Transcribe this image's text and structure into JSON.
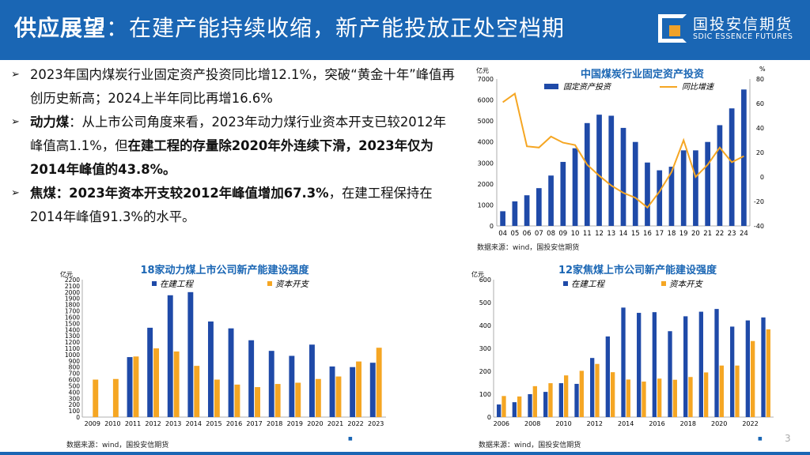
{
  "header": {
    "title_bold": "供应展望",
    "title_rest": "：在建产能持续收缩，新产能投放正处空档期",
    "logo_cn": "国投安信期货",
    "logo_en": "SDIC ESSENCE FUTURES"
  },
  "bullets": {
    "b1": "2023年国内煤炭行业固定资产投资同比增12.1%，突破“黄金十年”峰值再创历史新高；2024上半年同比再增16.6%",
    "b2_bold": "动力煤",
    "b2_a": "：从上市公司角度来看，2023年动力煤行业资本开支已较2012年峰值高1.1%，但",
    "b2_b": "在建工程的存量除2020年外连续下滑，2023年仅为2014年峰值的43.8%。",
    "b3_bold": "焦煤：2023年资本开支较2012年峰值增加67.3%",
    "b3_rest": "，在建工程保持在2014年峰值91.3%的水平。"
  },
  "sources": {
    "s1": "数据来源：wind，国投安信期货",
    "s2": "数据来源：wind，国投安信期货",
    "s3": "数据来源：wind，国投安信期货"
  },
  "page_number": "3",
  "colors": {
    "blue": "#1f4aa8",
    "orange": "#f5a623",
    "header": "#1a66b4",
    "title": "#1a66b4"
  },
  "chart_data": [
    {
      "type": "bar+line",
      "title": "中国煤炭行业固定资产投资",
      "left_unit": "亿元",
      "right_unit": "%",
      "categories": [
        "04",
        "05",
        "06",
        "07",
        "08",
        "09",
        "10",
        "11",
        "12",
        "13",
        "14",
        "15",
        "16",
        "17",
        "18",
        "19",
        "20",
        "21",
        "22",
        "23",
        "24"
      ],
      "series": [
        {
          "name": "固定资产投资",
          "type": "bar",
          "axis": "left",
          "values": [
            700,
            1170,
            1460,
            1800,
            2400,
            3050,
            3700,
            4900,
            5300,
            5250,
            4670,
            4000,
            3020,
            2650,
            2820,
            3600,
            3600,
            4000,
            4800,
            5600,
            6500
          ]
        },
        {
          "name": "同比增速",
          "type": "line",
          "axis": "right",
          "values": [
            61,
            68,
            25,
            24,
            33,
            28,
            26,
            10,
            1,
            -7,
            -13,
            -17,
            -25,
            -12,
            4,
            30,
            0,
            10,
            24,
            12,
            17
          ]
        }
      ],
      "ylim_left": [
        0,
        7000
      ],
      "yticks_left": [
        0,
        1000,
        2000,
        3000,
        4000,
        5000,
        6000,
        7000
      ],
      "ylim_right": [
        -40,
        80
      ],
      "yticks_right": [
        -40,
        -20,
        0,
        20,
        40,
        60,
        80
      ]
    },
    {
      "type": "bar",
      "title": "18家动力煤上市公司新产能建设强度",
      "unit": "亿元",
      "categories": [
        "2009",
        "2010",
        "2011",
        "2012",
        "2013",
        "2014",
        "2015",
        "2016",
        "2017",
        "2018",
        "2019",
        "2020",
        "2021",
        "2022",
        "2023"
      ],
      "series": [
        {
          "name": "在建工程",
          "values": [
            0,
            0,
            960,
            1430,
            1950,
            2000,
            1530,
            1420,
            1230,
            1060,
            980,
            1160,
            810,
            800,
            870
          ]
        },
        {
          "name": "资本开支",
          "values": [
            600,
            610,
            970,
            1100,
            1050,
            820,
            600,
            520,
            480,
            530,
            550,
            610,
            650,
            890,
            1110
          ]
        }
      ],
      "ylim": [
        0,
        2200
      ],
      "yticks": [
        0,
        100,
        200,
        300,
        400,
        500,
        600,
        700,
        800,
        900,
        1000,
        1100,
        1200,
        1300,
        1400,
        1500,
        1600,
        1700,
        1800,
        1900,
        2000,
        2100,
        2200
      ]
    },
    {
      "type": "bar",
      "title": "12家焦煤上市公司新产能建设强度",
      "unit": "亿元",
      "categories": [
        "2006",
        "2007",
        "2008",
        "2009",
        "2010",
        "2011",
        "2012",
        "2013",
        "2014",
        "2015",
        "2016",
        "2017",
        "2018",
        "2019",
        "2020",
        "2021",
        "2022",
        "2023"
      ],
      "xtick_labels": [
        "2006",
        "",
        "2008",
        "",
        "2010",
        "",
        "2012",
        "",
        "2014",
        "",
        "2016",
        "",
        "2018",
        "",
        "2020",
        "",
        "2022",
        ""
      ],
      "series": [
        {
          "name": "在建工程",
          "values": [
            55,
            65,
            100,
            110,
            148,
            145,
            258,
            352,
            478,
            455,
            458,
            375,
            440,
            460,
            472,
            395,
            422,
            435
          ]
        },
        {
          "name": "资本开支",
          "values": [
            92,
            90,
            135,
            148,
            182,
            202,
            232,
            196,
            164,
            155,
            168,
            163,
            175,
            195,
            225,
            225,
            332,
            383
          ]
        }
      ],
      "ylim": [
        0,
        600
      ],
      "yticks": [
        0,
        100,
        200,
        300,
        400,
        500,
        600
      ]
    }
  ]
}
